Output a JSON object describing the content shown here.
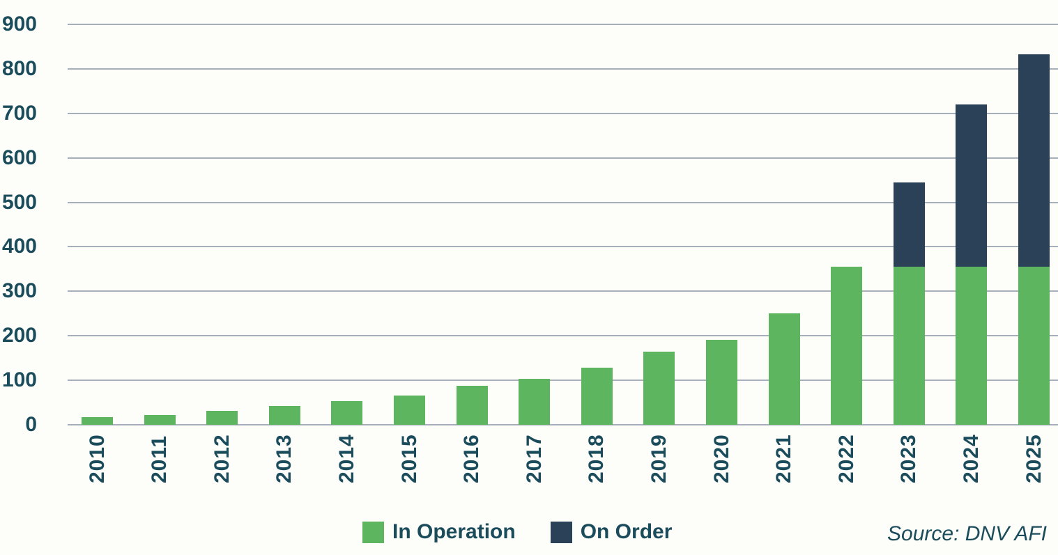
{
  "chart_data": {
    "type": "bar",
    "stacked": true,
    "title": "",
    "xlabel": "",
    "ylabel": "",
    "categories": [
      "2010",
      "2011",
      "2012",
      "2013",
      "2014",
      "2015",
      "2016",
      "2017",
      "2018",
      "2019",
      "2020",
      "2021",
      "2022",
      "2023",
      "2024",
      "2025"
    ],
    "series": [
      {
        "name": "In Operation",
        "color": "#5db560",
        "values": [
          18,
          22,
          31,
          42,
          53,
          66,
          88,
          103,
          129,
          164,
          191,
          250,
          355,
          355,
          355,
          355
        ]
      },
      {
        "name": "On Order",
        "color": "#2b4157",
        "values": [
          0,
          0,
          0,
          0,
          0,
          0,
          0,
          0,
          0,
          0,
          0,
          0,
          0,
          190,
          365,
          478
        ]
      }
    ],
    "totals": [
      18,
      22,
      31,
      42,
      53,
      66,
      88,
      103,
      129,
      164,
      191,
      250,
      355,
      545,
      720,
      833
    ],
    "ylim": [
      0,
      900
    ],
    "yticks": [
      0,
      100,
      200,
      300,
      400,
      500,
      600,
      700,
      800,
      900
    ],
    "grid": true,
    "legend_position": "bottom"
  },
  "legend": {
    "items": [
      {
        "label": "In Operation",
        "color": "#5db560"
      },
      {
        "label": "On Order",
        "color": "#2b4157"
      }
    ]
  },
  "source_note": "Source: DNV AFI",
  "colors": {
    "bar_green": "#5db560",
    "bar_navy": "#2b4157",
    "axis_text": "#1b4c5c",
    "gridline": "#a7afba",
    "background": "#fdfdfa"
  }
}
